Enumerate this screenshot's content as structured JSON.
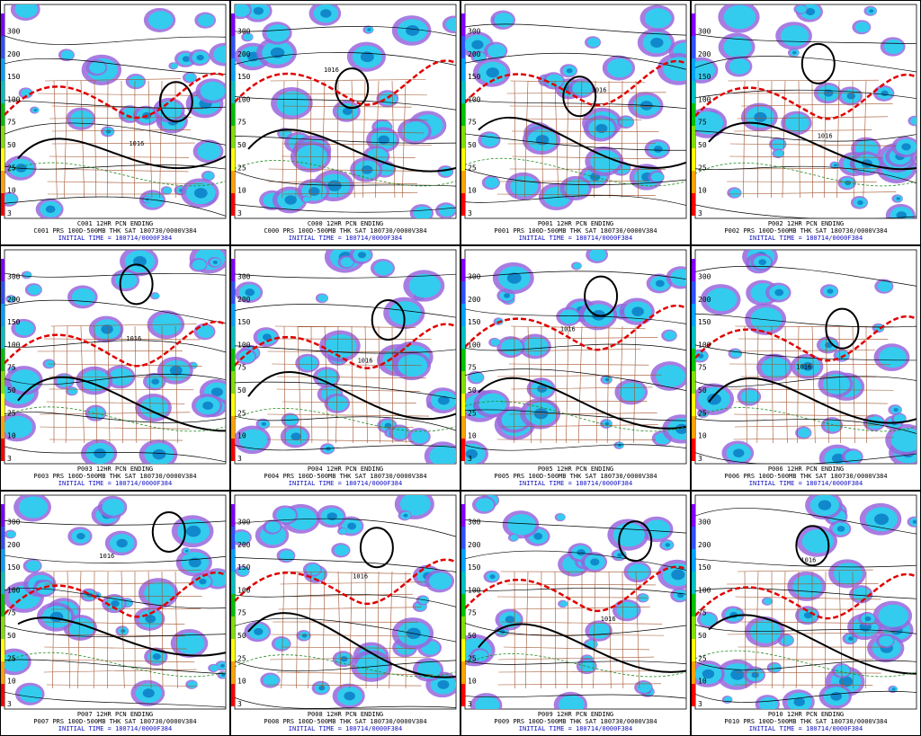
{
  "scale": [
    300,
    200,
    150,
    100,
    75,
    50,
    25,
    10,
    3
  ],
  "isobar": "1016",
  "panels": [
    {
      "title": "C001 12HR PCN ENDING",
      "caption": "C001 PRS 100D-500MB THK SAT 180730/0000V384",
      "initial": "INITIAL TIME = 180714/0000F384"
    },
    {
      "title": "C000 12HR PCN ENDING",
      "caption": "C000 PRS 100D-500MB THK SAT 180730/0000V384",
      "initial": "INITIAL TIME = 180714/0000F384"
    },
    {
      "title": "P001 12HR PCN ENDING",
      "caption": "P001 PRS 100D-500MB THK SAT 180730/0000V384",
      "initial": "INITIAL TIME = 180714/0000F384"
    },
    {
      "title": "P002 12HR PCN ENDING",
      "caption": "P002 PRS 100D-500MB THK SAT 180730/0000V384",
      "initial": "INITIAL TIME = 180714/0000F384"
    },
    {
      "title": "P003 12HR PCN ENDING",
      "caption": "P003 PRS 100D-500MB THK SAT 180730/0000V384",
      "initial": "INITIAL TIME = 180714/0000F384"
    },
    {
      "title": "P004 12HR PCN ENDING",
      "caption": "P004 PRS 100D-500MB THK SAT 180730/0000V384",
      "initial": "INITIAL TIME = 180714/0000F384"
    },
    {
      "title": "P005 12HR PCN ENDING",
      "caption": "P005 PRS 100D-500MB THK SAT 180730/0000V384",
      "initial": "INITIAL TIME = 180714/0000F384"
    },
    {
      "title": "P006 12HR PCN ENDING",
      "caption": "P006 PRS 100D-500MB THK SAT 180730/0000V384",
      "initial": "INITIAL TIME = 180714/0000F384"
    },
    {
      "title": "P007 12HR PCN ENDING",
      "caption": "P007 PRS 100D-500MB THK SAT 180730/0000V384",
      "initial": "INITIAL TIME = 180714/0000F384"
    },
    {
      "title": "P008 12HR PCN ENDING",
      "caption": "P008 PRS 100D-500MB THK SAT 180730/0000V384",
      "initial": "INITIAL TIME = 180714/0000F384"
    },
    {
      "title": "P009 12HR PCN ENDING",
      "caption": "P009 PRS 100D-500MB THK SAT 180730/0000V384",
      "initial": "INITIAL TIME = 180714/0000F384"
    },
    {
      "title": "P010 12HR PCN ENDING",
      "caption": "P010 PRS 100D-500MB THK SAT 180730/0000V384",
      "initial": "INITIAL TIME = 180714/0000F384"
    }
  ]
}
